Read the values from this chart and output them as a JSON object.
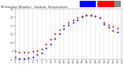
{
  "bg_color": "#ffffff",
  "plot_bg_color": "#ffffff",
  "grid_color": "#aaaaaa",
  "temp_color": "#cc0000",
  "windchill_color": "#0000cc",
  "legend_blue_color": "#0000ff",
  "legend_red_color": "#ff0000",
  "marker_size": 2.0,
  "y_min": -5,
  "y_max": 55,
  "y_ticks": [
    -5,
    5,
    15,
    25,
    35,
    45,
    55
  ],
  "y_tick_labels": [
    "-5",
    "5",
    "15",
    "25",
    "35",
    "45",
    "55"
  ],
  "x_min": 0,
  "x_max": 24,
  "x_ticks": [
    0,
    1,
    2,
    3,
    4,
    5,
    6,
    7,
    8,
    9,
    10,
    11,
    12,
    13,
    14,
    15,
    16,
    17,
    18,
    19,
    20,
    21,
    22,
    23,
    24
  ],
  "x_tick_labels": [
    "0",
    "1",
    "2",
    "3",
    "4",
    "5",
    "6",
    "7",
    "8",
    "9",
    "10",
    "11",
    "12",
    "13",
    "14",
    "15",
    "16",
    "17",
    "18",
    "19",
    "20",
    "21",
    "22",
    "23",
    "24"
  ],
  "temp_x": [
    0,
    1,
    2,
    3,
    4,
    5,
    6,
    7,
    8,
    9,
    10,
    11,
    12,
    13,
    14,
    15,
    16,
    17,
    18,
    19,
    20,
    21,
    22,
    23
  ],
  "temp_y": [
    4,
    3,
    3,
    3,
    4,
    5,
    7,
    13,
    19,
    25,
    30,
    35,
    39,
    42,
    44,
    46,
    47,
    47,
    46,
    44,
    39,
    36,
    34,
    32
  ],
  "wind_x": [
    0,
    1,
    2,
    3,
    4,
    5,
    6,
    7,
    8,
    9,
    10,
    11,
    12,
    13,
    14,
    15,
    16,
    17,
    18,
    19,
    20,
    21,
    22,
    23
  ],
  "wind_y": [
    -2,
    -4,
    -4,
    -3,
    -2,
    0,
    2,
    8,
    13,
    20,
    25,
    31,
    36,
    39,
    42,
    45,
    47,
    47,
    46,
    44,
    37,
    33,
    29,
    27
  ]
}
